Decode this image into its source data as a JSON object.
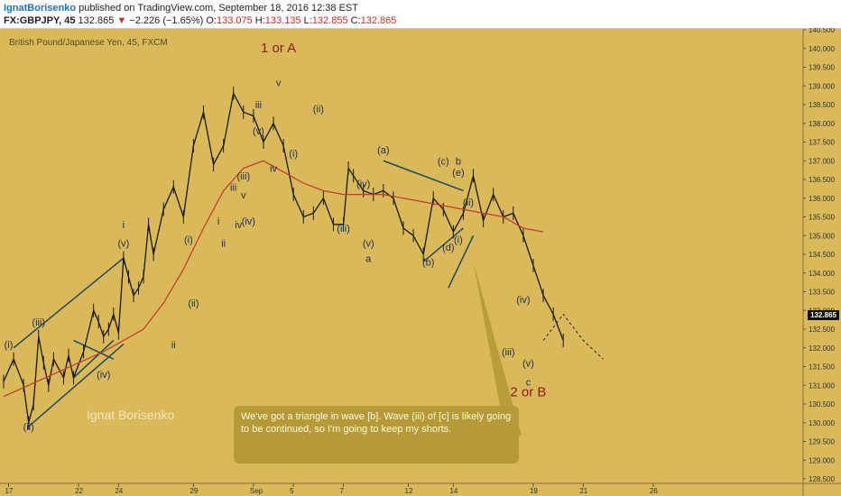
{
  "header": {
    "author": "IgnatBorisenko",
    "published": " published on TradingView.com, September 18, 2016 12:38 EST",
    "symbol": "FX:GBPJPY, 45",
    "last": "132.865",
    "change_arrow": "▼",
    "change": "−2.226 (−1.65%)",
    "o_label": "O:",
    "o_val": "133.075",
    "h_label": "H:",
    "h_val": "133.135",
    "l_label": "L:",
    "l_val": "132.855",
    "c_label": "C:",
    "c_val": "132.865"
  },
  "instrument": "British Pound/Japanese Yen, 45, FXCM",
  "watermark": "Ignat Borisenko",
  "note": "We've got a triangle in wave [b]. Wave (iii) of [c] is likely going to be continued, so I'm going to keep my shorts.",
  "price_tag": "132.865",
  "colors": {
    "background": "#d9b95a",
    "moving_average": "#c0392b",
    "candles": "#1a1a1a",
    "trendlines": "#1f4a5c",
    "wave_major": "#8c1d1d",
    "wave_minor": "#1f2d4a",
    "wave_circled": "#6c8a2b",
    "note_box": "#b59a37"
  },
  "chart_data": {
    "type": "line",
    "x_ticks": [
      "17",
      "22",
      "24",
      "29",
      "Sep",
      "5",
      "7",
      "12",
      "14",
      "19",
      "21",
      "26"
    ],
    "y_ticks": [
      "140.500",
      "140.000",
      "139.500",
      "139.000",
      "138.500",
      "138.000",
      "137.500",
      "137.000",
      "136.500",
      "136.000",
      "135.500",
      "135.000",
      "134.500",
      "134.000",
      "133.500",
      "133.000",
      "132.500",
      "132.000",
      "131.500",
      "131.000",
      "130.500",
      "130.000",
      "129.500",
      "129.000",
      "128.500"
    ],
    "ylim": [
      128.5,
      140.5
    ],
    "price_series": {
      "x": [
        0,
        2,
        4,
        5,
        6,
        7,
        8,
        9,
        10,
        12,
        13,
        14,
        16,
        18,
        19,
        20,
        21,
        22,
        23,
        24,
        25,
        26,
        27,
        28,
        29,
        30,
        32,
        34,
        36,
        38,
        40,
        42,
        44,
        46,
        48,
        50,
        52,
        54,
        56,
        58,
        60,
        62,
        64,
        66,
        68,
        69,
        70,
        72,
        74,
        76,
        78,
        80,
        82,
        84,
        86,
        88,
        90,
        92,
        94,
        96,
        98,
        100,
        102,
        104,
        106,
        108,
        110,
        112,
        113,
        114,
        116,
        118,
        120,
        122,
        124,
        126,
        128,
        130,
        132,
        134,
        136,
        138,
        140,
        142,
        144,
        146,
        147,
        148,
        150,
        152,
        154,
        156,
        158,
        160
      ],
      "y": [
        131.1,
        131.7,
        131.0,
        130.0,
        130.5,
        132.3,
        131.6,
        131.0,
        131.7,
        131.2,
        131.8,
        131.2,
        131.9,
        133.0,
        132.7,
        132.3,
        132.5,
        132.9,
        132.4,
        134.4,
        133.9,
        133.4,
        133.6,
        133.9,
        135.3,
        134.5,
        135.7,
        136.3,
        135.5,
        137.4,
        138.3,
        136.9,
        137.4,
        138.8,
        138.3,
        138.2,
        137.5,
        138.0,
        137.4,
        136.1,
        135.5,
        135.6,
        136.0,
        135.3,
        135.3,
        136.8,
        136.6,
        136.2,
        136.1,
        136.2,
        136.0,
        135.2,
        135.0,
        134.5,
        136.0,
        135.7,
        135.1,
        135.6,
        136.6,
        135.4,
        136.1,
        135.5,
        135.6,
        135.0,
        134.2,
        133.4,
        132.9,
        132.2,
        null,
        null,
        null,
        null,
        null,
        null,
        null,
        null,
        null,
        null,
        null,
        null,
        null,
        null,
        null,
        null,
        null,
        null,
        null,
        null,
        null,
        null,
        null,
        null,
        null,
        null
      ]
    },
    "moving_average": {
      "x": [
        0,
        10,
        20,
        24,
        28,
        32,
        36,
        40,
        44,
        48,
        52,
        56,
        60,
        64,
        68,
        72,
        76,
        80,
        84,
        88,
        92,
        96,
        100,
        104,
        108
      ],
      "y": [
        130.7,
        131.3,
        131.9,
        132.2,
        132.5,
        133.2,
        134.1,
        135.2,
        136.2,
        136.8,
        137.0,
        136.7,
        136.4,
        136.2,
        136.1,
        136.1,
        136.1,
        136.0,
        135.9,
        135.8,
        135.7,
        135.6,
        135.5,
        135.2,
        135.1
      ]
    },
    "projection": {
      "x": [
        108,
        112,
        116,
        120
      ],
      "y": [
        132.2,
        132.9,
        132.2,
        131.7
      ]
    },
    "wave_labels": [
      {
        "text": "(i)",
        "x": 1,
        "y": 132.0
      },
      {
        "text": "(ii)",
        "x": 5,
        "y": 129.8
      },
      {
        "text": "(iii)",
        "x": 7,
        "y": 132.6
      },
      {
        "text": "(iv)",
        "x": 20,
        "y": 131.2
      },
      {
        "text": "(v)",
        "x": 24,
        "y": 134.7
      },
      {
        "text": "i",
        "x": 24,
        "y": 135.2
      },
      {
        "text": "ii",
        "x": 34,
        "y": 132.0
      },
      {
        "text": "(i)",
        "x": 37,
        "y": 134.8
      },
      {
        "text": "(ii)",
        "x": 38,
        "y": 133.1
      },
      {
        "text": "i",
        "x": 43,
        "y": 135.3
      },
      {
        "text": "ii",
        "x": 44,
        "y": 134.7
      },
      {
        "text": "iii",
        "x": 46,
        "y": 136.2
      },
      {
        "text": "iv",
        "x": 47,
        "y": 135.2
      },
      {
        "text": "(iii)",
        "x": 48,
        "y": 136.5
      },
      {
        "text": "v",
        "x": 48,
        "y": 136.0
      },
      {
        "text": "(iv)",
        "x": 49,
        "y": 135.3
      },
      {
        "text": "(v)",
        "x": 51,
        "y": 137.7
      },
      {
        "text": "iii",
        "x": 51,
        "y": 138.4
      },
      {
        "text": "iv",
        "x": 54,
        "y": 136.7
      },
      {
        "text": "v",
        "x": 55,
        "y": 139.0
      },
      {
        "text": "1 or A",
        "x": 55,
        "y": 139.9
      },
      {
        "text": "(i)",
        "x": 58,
        "y": 137.1
      },
      {
        "text": "(ii)",
        "x": 63,
        "y": 138.3
      },
      {
        "text": "(iii)",
        "x": 68,
        "y": 135.1
      },
      {
        "text": "(iv)",
        "x": 72,
        "y": 136.3
      },
      {
        "text": "(v)",
        "x": 73,
        "y": 134.7
      },
      {
        "text": "a",
        "x": 73,
        "y": 134.3
      },
      {
        "text": "(a)",
        "x": 76,
        "y": 137.2
      },
      {
        "text": "(b)",
        "x": 85,
        "y": 134.2
      },
      {
        "text": "(c)",
        "x": 88,
        "y": 136.9
      },
      {
        "text": "(d)",
        "x": 89,
        "y": 134.6
      },
      {
        "text": "(i)",
        "x": 91,
        "y": 134.8
      },
      {
        "text": "(e)",
        "x": 91,
        "y": 136.6
      },
      {
        "text": "b",
        "x": 91,
        "y": 136.9
      },
      {
        "text": "(ii)",
        "x": 93,
        "y": 135.8
      },
      {
        "text": "(iii)",
        "x": 101,
        "y": 131.8
      },
      {
        "text": "(iv)",
        "x": 104,
        "y": 133.2
      },
      {
        "text": "(v)",
        "x": 105,
        "y": 131.5
      },
      {
        "text": "c",
        "x": 105,
        "y": 131.0
      },
      {
        "text": "2 or B",
        "x": 105,
        "y": 130.7
      }
    ]
  }
}
